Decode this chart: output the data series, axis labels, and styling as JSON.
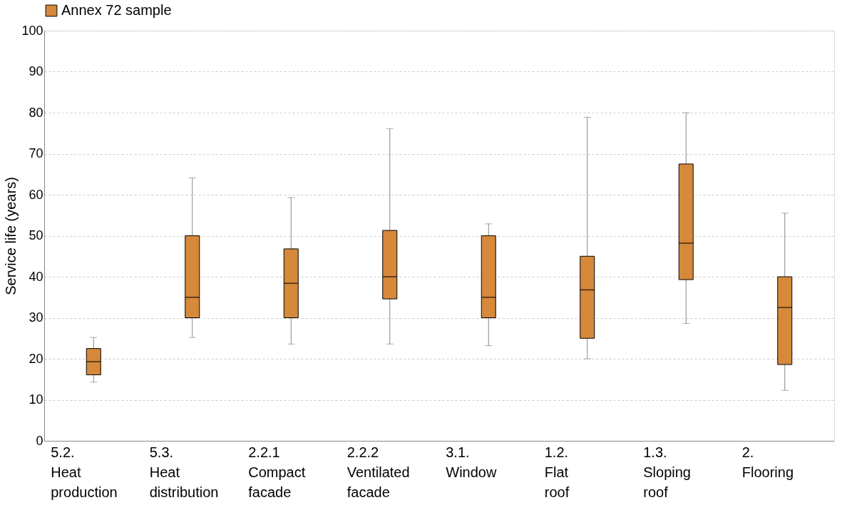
{
  "chart_data": {
    "type": "box",
    "ylabel": "Service life (years)",
    "categories": [
      "5.2. Heat production",
      "5.3. Heat distribution",
      "2.2.1 Compact facade",
      "2.2.2 Ventilated facade",
      "3.1. Window",
      "1.2. Flat roof",
      "1.3. Sloping roof",
      "2. Flooring"
    ],
    "series": [
      {
        "name": "Annex 72 sample",
        "color": "#d6883b",
        "boxes": [
          {
            "low": 14.3,
            "q1": 16.1,
            "median": 19.3,
            "q3": 22.5,
            "high": 25.2
          },
          {
            "low": 25.2,
            "q1": 30,
            "median": 35,
            "q3": 50,
            "high": 64.1
          },
          {
            "low": 23.6,
            "q1": 30,
            "median": 38.4,
            "q3": 46.8,
            "high": 59.3
          },
          {
            "low": 23.6,
            "q1": 34.6,
            "median": 40,
            "q3": 51.3,
            "high": 76.1
          },
          {
            "low": 23.2,
            "q1": 30,
            "median": 35,
            "q3": 50,
            "high": 52.9
          },
          {
            "low": 20,
            "q1": 25,
            "median": 36.8,
            "q3": 45,
            "high": 78.9
          },
          {
            "low": 28.6,
            "q1": 39.3,
            "median": 48.2,
            "q3": 67.5,
            "high": 80
          },
          {
            "low": 12.3,
            "q1": 18.6,
            "median": 32.5,
            "q3": 40,
            "high": 55.5
          }
        ]
      }
    ],
    "ylim": [
      0,
      100
    ],
    "yticks": [
      0,
      10,
      20,
      30,
      40,
      50,
      60,
      70,
      80,
      90,
      100
    ],
    "grid": "y",
    "legend": "top"
  }
}
